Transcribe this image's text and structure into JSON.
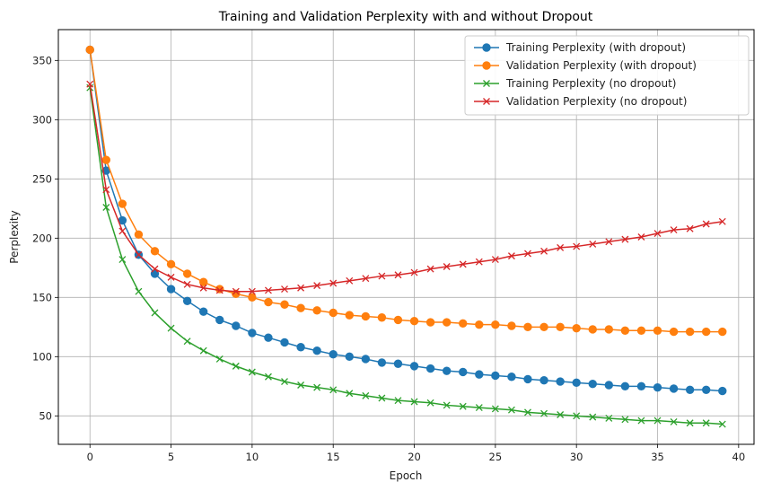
{
  "chart_data": {
    "type": "line",
    "title": "Training and Validation Perplexity with and without Dropout",
    "xlabel": "Epoch",
    "ylabel": "Perplexity",
    "xlim": [
      -1.95,
      40.95
    ],
    "ylim": [
      26,
      376
    ],
    "xticks": [
      0,
      5,
      10,
      15,
      20,
      25,
      30,
      35,
      40
    ],
    "yticks": [
      50,
      100,
      150,
      200,
      250,
      300,
      350
    ],
    "grid": true,
    "legend_position": "top-right",
    "x": [
      0,
      1,
      2,
      3,
      4,
      5,
      6,
      7,
      8,
      9,
      10,
      11,
      12,
      13,
      14,
      15,
      16,
      17,
      18,
      19,
      20,
      21,
      22,
      23,
      24,
      25,
      26,
      27,
      28,
      29,
      30,
      31,
      32,
      33,
      34,
      35,
      36,
      37,
      38,
      39
    ],
    "series": [
      {
        "name": "Training Perplexity (with dropout)",
        "color": "#1f77b4",
        "marker": "circle",
        "values": [
          359,
          257,
          215,
          186,
          170,
          157,
          147,
          138,
          131,
          126,
          120,
          116,
          112,
          108,
          105,
          102,
          100,
          98,
          95,
          94,
          92,
          90,
          88,
          87,
          85,
          84,
          83,
          81,
          80,
          79,
          78,
          77,
          76,
          75,
          75,
          74,
          73,
          72,
          72,
          71
        ]
      },
      {
        "name": "Validation Perplexity (with dropout)",
        "color": "#ff7f0e",
        "marker": "circle",
        "values": [
          359,
          266,
          229,
          203,
          189,
          178,
          170,
          163,
          157,
          153,
          150,
          146,
          144,
          141,
          139,
          137,
          135,
          134,
          133,
          131,
          130,
          129,
          129,
          128,
          127,
          127,
          126,
          125,
          125,
          125,
          124,
          123,
          123,
          122,
          122,
          122,
          121,
          121,
          121,
          121
        ]
      },
      {
        "name": "Training Perplexity (no dropout)",
        "color": "#2ca02c",
        "marker": "x",
        "values": [
          327,
          226,
          182,
          155,
          137,
          124,
          113,
          105,
          98,
          92,
          87,
          83,
          79,
          76,
          74,
          72,
          69,
          67,
          65,
          63,
          62,
          61,
          59,
          58,
          57,
          56,
          55,
          53,
          52,
          51,
          50,
          49,
          48,
          47,
          46,
          46,
          45,
          44,
          44,
          43
        ]
      },
      {
        "name": "Validation Perplexity (no dropout)",
        "color": "#d62728",
        "marker": "x",
        "values": [
          330,
          241,
          206,
          186,
          174,
          167,
          161,
          158,
          156,
          155,
          155,
          156,
          157,
          158,
          160,
          162,
          164,
          166,
          168,
          169,
          171,
          174,
          176,
          178,
          180,
          182,
          185,
          187,
          189,
          192,
          193,
          195,
          197,
          199,
          201,
          204,
          207,
          208,
          212,
          214
        ]
      }
    ]
  }
}
